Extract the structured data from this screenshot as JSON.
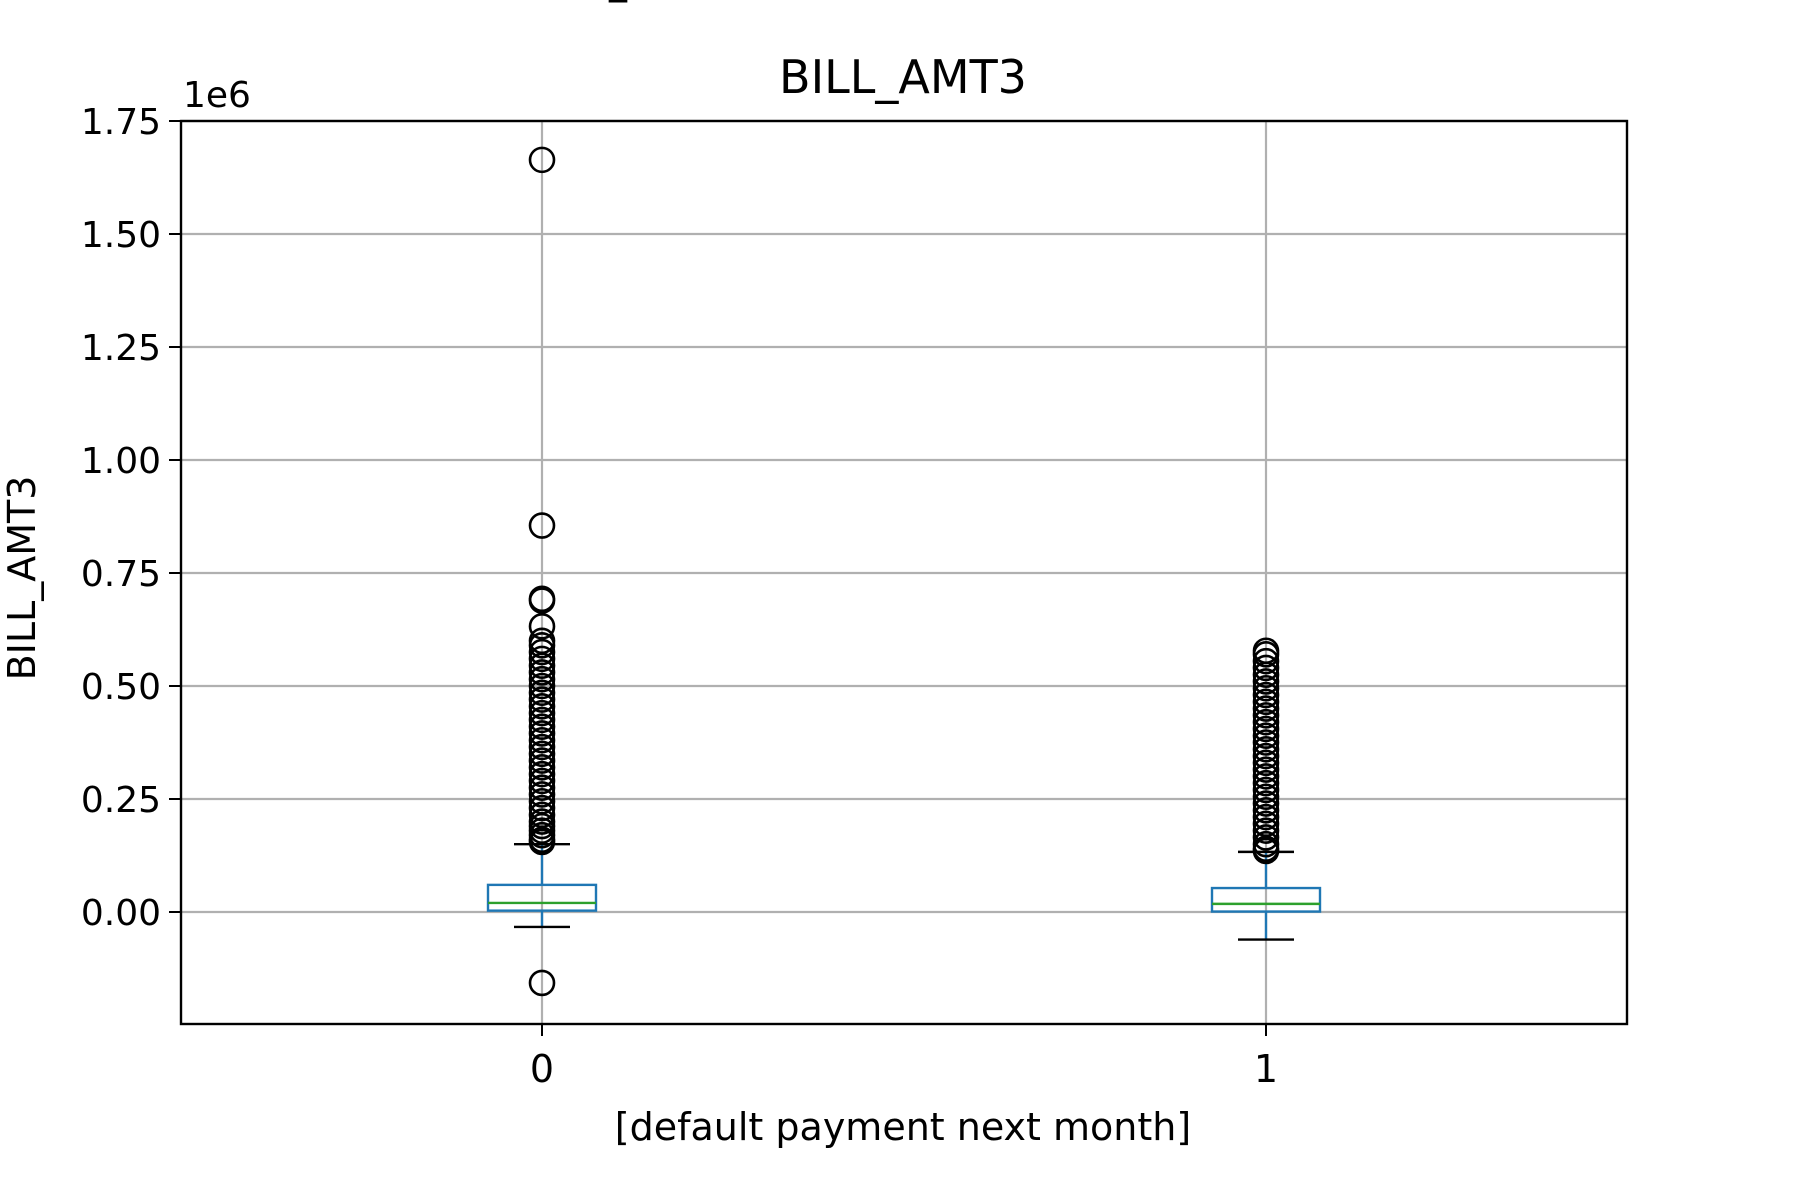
{
  "chart_data": {
    "type": "box",
    "title": "BILL_AMT3",
    "suptitle_fragment": "_",
    "xlabel": "[default payment next month]",
    "ylabel": "BILL_AMT3",
    "offset_label": "1e6",
    "ylim": [
      -0.2,
      1.75
    ],
    "yticks": [
      0.0,
      0.25,
      0.5,
      0.75,
      1.0,
      1.25,
      1.5,
      1.75
    ],
    "ytick_labels": [
      "0.00",
      "0.25",
      "0.50",
      "0.75",
      "1.00",
      "1.25",
      "1.50",
      "1.75"
    ],
    "categories": [
      "0",
      "1"
    ],
    "grid": true,
    "colors": {
      "box": "#1f77b4",
      "median": "#2ca02c",
      "whisker_cap": "#000000",
      "flier": "#000000",
      "grid": "#b0b0b0"
    },
    "boxes": [
      {
        "category": "0",
        "whisker_low": -0.033,
        "q1": 0.003,
        "median": 0.02,
        "q3": 0.06,
        "whisker_high": 0.15,
        "fliers": [
          1.664,
          0.855,
          0.693,
          0.689,
          0.632,
          0.6,
          0.59,
          0.575,
          0.56,
          0.545,
          0.53,
          0.515,
          0.5,
          0.485,
          0.47,
          0.455,
          0.44,
          0.425,
          0.41,
          0.395,
          0.38,
          0.365,
          0.35,
          0.335,
          0.32,
          0.305,
          0.29,
          0.275,
          0.26,
          0.245,
          0.23,
          0.215,
          0.2,
          0.19,
          0.18,
          0.17,
          0.16,
          0.155,
          -0.157
        ]
      },
      {
        "category": "1",
        "whisker_low": -0.061,
        "q1": 0.001,
        "median": 0.018,
        "q3": 0.053,
        "whisker_high": 0.133,
        "fliers": [
          0.578,
          0.57,
          0.555,
          0.54,
          0.525,
          0.51,
          0.495,
          0.48,
          0.465,
          0.45,
          0.435,
          0.42,
          0.405,
          0.39,
          0.375,
          0.36,
          0.345,
          0.33,
          0.315,
          0.3,
          0.285,
          0.27,
          0.255,
          0.24,
          0.225,
          0.21,
          0.195,
          0.18,
          0.165,
          0.15,
          0.14,
          0.135
        ]
      }
    ]
  }
}
